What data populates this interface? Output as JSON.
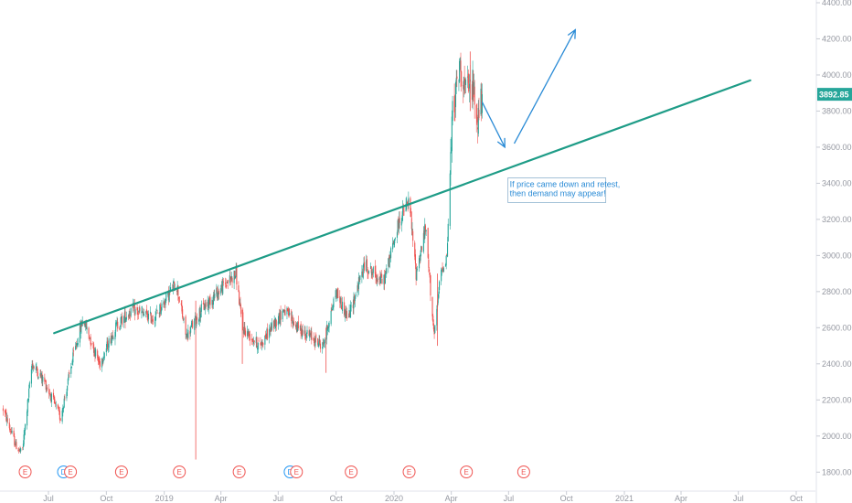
{
  "chart_data": {
    "type": "candlestick",
    "ylim": [
      1700,
      4400
    ],
    "y_ticks": [
      1800,
      2000,
      2200,
      2400,
      2600,
      2800,
      3000,
      3200,
      3400,
      3600,
      3800,
      4000,
      4200,
      4400
    ],
    "y_tick_labels": [
      "1800.00",
      "2000.00",
      "2200.00",
      "2400.00",
      "2600.00",
      "2800.00",
      "3000.00",
      "3200.00",
      "3400.00",
      "3600.00",
      "3800.00",
      "4000.00",
      "4200.00",
      "4400.00"
    ],
    "x_ticks": [
      "Jul",
      "Oct",
      "2019",
      "Apr",
      "Jul",
      "Oct",
      "2020",
      "Apr",
      "Jul",
      "Oct",
      "2021",
      "Apr",
      "Jul",
      "Oct"
    ],
    "x_ticks_time": [
      "2018-07",
      "2018-10",
      "2019-01",
      "2019-04",
      "2019-07",
      "2019-10",
      "2020-01",
      "2020-04",
      "2020-07",
      "2020-10",
      "2021-01",
      "2021-04",
      "2021-07",
      "2021-10"
    ],
    "anchors": [
      {
        "t": "2018-04-20",
        "v": 2150
      },
      {
        "t": "2018-05-10",
        "v": 1950
      },
      {
        "t": "2018-05-20",
        "v": 1900
      },
      {
        "t": "2018-06-05",
        "v": 2400
      },
      {
        "t": "2018-06-25",
        "v": 2300
      },
      {
        "t": "2018-07-20",
        "v": 2100
      },
      {
        "t": "2018-08-10",
        "v": 2450
      },
      {
        "t": "2018-08-25",
        "v": 2650
      },
      {
        "t": "2018-09-20",
        "v": 2400
      },
      {
        "t": "2018-10-15",
        "v": 2600
      },
      {
        "t": "2018-11-10",
        "v": 2700
      },
      {
        "t": "2018-12-15",
        "v": 2650
      },
      {
        "t": "2019-01-20",
        "v": 2850
      },
      {
        "t": "2019-02-05",
        "v": 2550
      },
      {
        "t": "2019-03-01",
        "v": 2700
      },
      {
        "t": "2019-04-10",
        "v": 2850
      },
      {
        "t": "2019-04-25",
        "v": 2900
      },
      {
        "t": "2019-05-05",
        "v": 2600
      },
      {
        "t": "2019-06-01",
        "v": 2500
      },
      {
        "t": "2019-07-10",
        "v": 2700
      },
      {
        "t": "2019-08-01",
        "v": 2600
      },
      {
        "t": "2019-09-10",
        "v": 2500
      },
      {
        "t": "2019-10-01",
        "v": 2800
      },
      {
        "t": "2019-10-20",
        "v": 2650
      },
      {
        "t": "2019-11-15",
        "v": 2950
      },
      {
        "t": "2019-12-15",
        "v": 2850
      },
      {
        "t": "2020-01-10",
        "v": 3200
      },
      {
        "t": "2020-01-25",
        "v": 3300
      },
      {
        "t": "2020-02-05",
        "v": 2900
      },
      {
        "t": "2020-02-20",
        "v": 3150
      },
      {
        "t": "2020-03-05",
        "v": 2550
      },
      {
        "t": "2020-03-15",
        "v": 2900
      },
      {
        "t": "2020-03-25",
        "v": 3000
      },
      {
        "t": "2020-04-03",
        "v": 3800
      },
      {
        "t": "2020-04-15",
        "v": 4050
      },
      {
        "t": "2020-04-25",
        "v": 3900
      },
      {
        "t": "2020-05-05",
        "v": 3950
      },
      {
        "t": "2020-05-12",
        "v": 3750
      },
      {
        "t": "2020-05-20",
        "v": 3892.85
      }
    ],
    "wick_spikes": [
      {
        "t": "2019-02-20",
        "low": 1870,
        "high": 2750
      },
      {
        "t": "2019-05-05",
        "low": 2400,
        "high": 2700
      },
      {
        "t": "2019-09-15",
        "low": 2350,
        "high": 2600
      },
      {
        "t": "2020-03-10",
        "low": 2500,
        "high": 2900
      },
      {
        "t": "2020-05-01",
        "low": 3800,
        "high": 4130
      }
    ],
    "trendline": {
      "start": {
        "t": "2018-07-10",
        "v": 2570
      },
      "end": {
        "t": "2021-07-20",
        "v": 3970
      },
      "color": "#1e9c87"
    },
    "arrows": [
      {
        "from": {
          "t": "2020-05-20",
          "v": 3850
        },
        "to": {
          "t": "2020-06-25",
          "v": 3600
        }
      },
      {
        "from": {
          "t": "2020-07-10",
          "v": 3620
        },
        "to": {
          "t": "2020-10-15",
          "v": 4250
        }
      }
    ],
    "annotation": {
      "lines": [
        "If price came down and retest,",
        "then demand may appear!"
      ],
      "anchor": {
        "t": "2020-06-30",
        "v": 3430
      }
    },
    "last_price": {
      "value": 3892.85,
      "label": "3892.85",
      "color": "#26a69a"
    },
    "events": [
      {
        "t": "2018-05-25",
        "type": "E"
      },
      {
        "t": "2018-07-25",
        "type": "D"
      },
      {
        "t": "2018-08-05",
        "type": "E"
      },
      {
        "t": "2018-10-25",
        "type": "E"
      },
      {
        "t": "2019-01-25",
        "type": "E"
      },
      {
        "t": "2019-04-30",
        "type": "E"
      },
      {
        "t": "2019-07-20",
        "type": "D"
      },
      {
        "t": "2019-07-30",
        "type": "E"
      },
      {
        "t": "2019-10-25",
        "type": "E"
      },
      {
        "t": "2020-01-25",
        "type": "E"
      },
      {
        "t": "2020-04-25",
        "type": "E"
      },
      {
        "t": "2020-07-25",
        "type": "E"
      }
    ],
    "colors": {
      "up": "#26a69a",
      "down": "#ef5350",
      "earnings": "#ef5350",
      "dividend": "#2196f3",
      "arrow": "#2a8bd6"
    }
  }
}
